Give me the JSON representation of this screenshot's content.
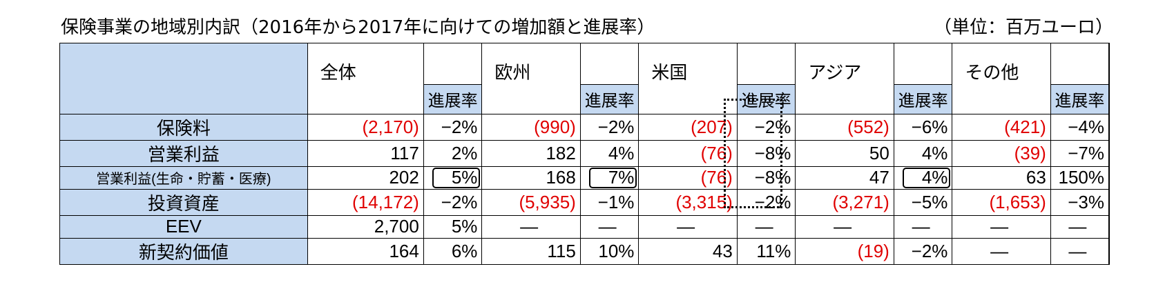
{
  "title": "保険事業の地域別内訳（2016年から2017年に向けての増加額と進展率）",
  "unit": "（単位：百万ユーロ）",
  "groups": [
    "全体",
    "欧州",
    "米国",
    "アジア",
    "その他"
  ],
  "sub_label": "進展率",
  "rows": [
    {
      "label": "保険料",
      "cells": [
        "(2,170)",
        "−2%",
        "(990)",
        "−2%",
        "(207)",
        "−2%",
        "(552)",
        "−6%",
        "(421)",
        "−4%"
      ]
    },
    {
      "label": "営業利益",
      "cells": [
        "117",
        "2%",
        "182",
        "4%",
        "(76)",
        "−8%",
        "50",
        "4%",
        "(39)",
        "−7%"
      ]
    },
    {
      "label": "営業利益(生命・貯蓄・医療)",
      "cells": [
        "202",
        "5%",
        "168",
        "7%",
        "(76)",
        "−8%",
        "47",
        "4%",
        "63",
        "150%"
      ]
    },
    {
      "label": "投資資産",
      "cells": [
        "(14,172)",
        "−2%",
        "(5,935)",
        "−1%",
        "(3,315)",
        "−2%",
        "(3,271)",
        "−5%",
        "(1,653)",
        "−3%"
      ]
    },
    {
      "label": "EEV",
      "cells": [
        "2,700",
        "5%",
        "—",
        "—",
        "—",
        "—",
        "—",
        "—",
        "—",
        "—"
      ]
    },
    {
      "label": "新契約価値",
      "cells": [
        "164",
        "6%",
        "115",
        "10%",
        "43",
        "11%",
        "(19)",
        "−2%",
        "—",
        "—"
      ]
    }
  ]
}
